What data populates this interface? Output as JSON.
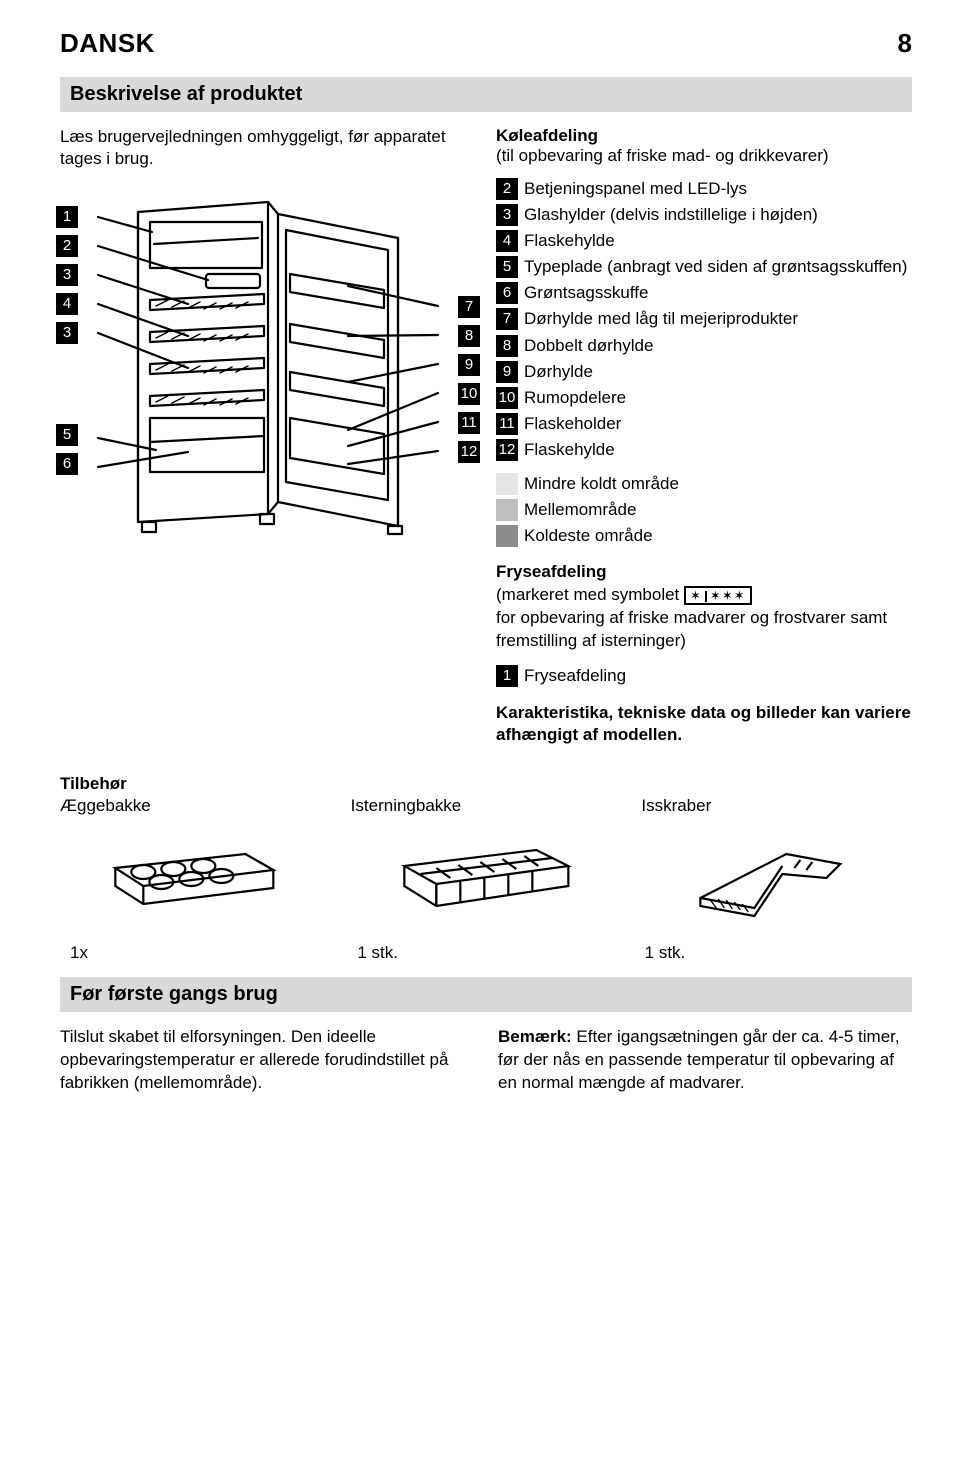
{
  "header": {
    "language": "DANSK",
    "page_number": "8"
  },
  "section1": {
    "title": "Beskrivelse af produktet",
    "intro": "Læs brugervejledningen omhyggeligt, før apparatet tages i brug.",
    "cooling_head": "Køleafdeling",
    "cooling_sub": "(til opbevaring af friske mad- og drikkevarer)",
    "left_callouts": [
      "1",
      "2",
      "3",
      "4",
      "3",
      "5",
      "6"
    ],
    "right_callouts": [
      "7",
      "8",
      "9",
      "10",
      "11",
      "12"
    ],
    "parts": [
      {
        "n": "2",
        "t": "Betjeningspanel med LED-lys"
      },
      {
        "n": "3",
        "t": "Glashylder (delvis indstillelige i højden)"
      },
      {
        "n": "4",
        "t": "Flaskehylde"
      },
      {
        "n": "5",
        "t": "Typeplade (anbragt ved siden af grøntsagsskuffen)"
      },
      {
        "n": "6",
        "t": "Grøntsagsskuffe"
      },
      {
        "n": "7",
        "t": "Dørhylde med låg til mejeriprodukter"
      },
      {
        "n": "8",
        "t": "Dobbelt dørhylde"
      },
      {
        "n": "9",
        "t": "Dørhylde"
      },
      {
        "n": "10",
        "t": "Rumopdelere"
      },
      {
        "n": "11",
        "t": "Flaskeholder"
      },
      {
        "n": "12",
        "t": "Flaskehylde"
      }
    ],
    "zones": [
      {
        "color": "#e6e6e6",
        "label": "Mindre koldt område"
      },
      {
        "color": "#bfbfbf",
        "label": "Mellemområde"
      },
      {
        "color": "#8c8c8c",
        "label": "Koldeste område"
      }
    ],
    "freezer_head": "Fryseafdeling",
    "freezer_line1": "(markeret med symbolet",
    "freezer_line2": "for opbevaring af friske madvarer og frostvarer samt fremstilling af isterninger)",
    "freezer_item": {
      "n": "1",
      "t": "Fryseafdeling"
    },
    "char_note": "Karakteristika, tekniske data og billeder kan variere afhængigt af modellen."
  },
  "accessories": {
    "head": "Tilbehør",
    "items": [
      {
        "name": "Æggebakke",
        "qty": "1x"
      },
      {
        "name": "Isterningbakke",
        "qty": "1 stk."
      },
      {
        "name": "Isskraber",
        "qty": "1 stk."
      }
    ]
  },
  "section2": {
    "title": "Før første gangs brug",
    "left": "Tilslut skabet til elforsyningen. Den ideelle opbevaringstemperatur er allerede forudindstillet på fabrikken (mellemområde).",
    "right_bold": "Bemærk:",
    "right": " Efter igangsætningen går der ca. 4-5 timer, før der nås en passende temperatur til opbevaring af en normal mængde af madvarer."
  },
  "colors": {
    "section_bar_bg": "#d9d9d9",
    "numbox_bg": "#000000",
    "numbox_fg": "#ffffff",
    "text": "#000000"
  }
}
